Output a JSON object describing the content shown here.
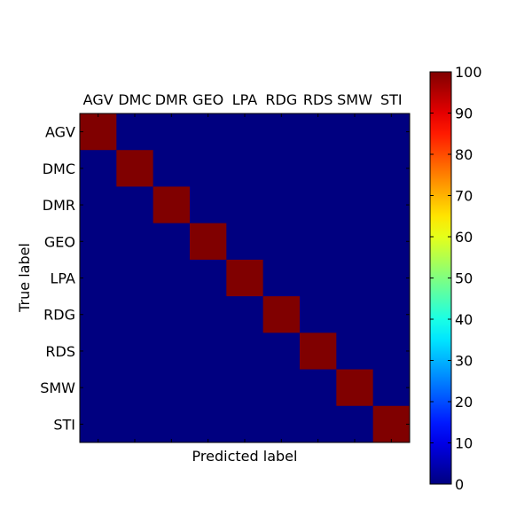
{
  "chart_data": {
    "type": "heatmap",
    "title": "",
    "xlabel": "Predicted label",
    "ylabel": "True label",
    "x_categories": [
      "AGV",
      "DMC",
      "DMR",
      "GEO",
      "LPA",
      "RDG",
      "RDS",
      "SMW",
      "STI"
    ],
    "y_categories": [
      "AGV",
      "DMC",
      "DMR",
      "GEO",
      "LPA",
      "RDG",
      "RDS",
      "SMW",
      "STI"
    ],
    "values": [
      [
        100,
        0,
        0,
        0,
        0,
        0,
        0,
        0,
        0
      ],
      [
        0,
        100,
        0,
        0,
        0,
        0,
        0,
        0,
        0
      ],
      [
        0,
        0,
        100,
        0,
        0,
        0,
        0,
        0,
        0
      ],
      [
        0,
        0,
        0,
        100,
        0,
        0,
        0,
        0,
        0
      ],
      [
        0,
        0,
        0,
        0,
        100,
        0,
        0,
        0,
        0
      ],
      [
        0,
        0,
        0,
        0,
        0,
        100,
        0,
        0,
        0
      ],
      [
        0,
        0,
        0,
        0,
        0,
        0,
        100,
        0,
        0
      ],
      [
        0,
        0,
        0,
        0,
        0,
        0,
        0,
        100,
        0
      ],
      [
        0,
        0,
        0,
        0,
        0,
        0,
        0,
        0,
        100
      ]
    ],
    "colorbar": {
      "range": [
        0,
        100
      ],
      "ticks": [
        0,
        10,
        20,
        30,
        40,
        50,
        60,
        70,
        80,
        90,
        100
      ],
      "colormap": "jet"
    },
    "x_ticks_position": "top",
    "grid": false
  }
}
